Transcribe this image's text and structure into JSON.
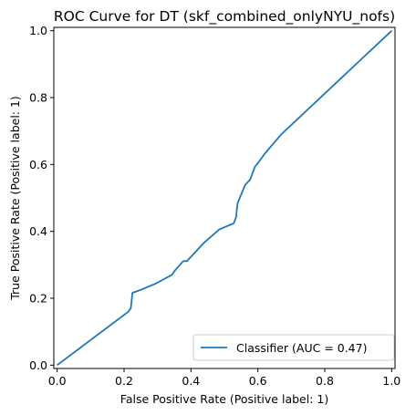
{
  "chart_data": {
    "type": "line",
    "title": "ROC Curve for DT (skf_combined_onlyNYU_nofs)",
    "xlabel": "False Positive Rate (Positive label: 1)",
    "ylabel": "True Positive Rate (Positive label: 1)",
    "xlim": [
      -0.01,
      1.01
    ],
    "ylim": [
      -0.01,
      1.01
    ],
    "xticks": [
      "0.0",
      "0.2",
      "0.4",
      "0.6",
      "0.8",
      "1.0"
    ],
    "yticks": [
      "0.0",
      "0.2",
      "0.4",
      "0.6",
      "0.8",
      "1.0"
    ],
    "grid": false,
    "legend_position": "lower-right",
    "series": [
      {
        "name": "Classifier (AUC = 0.47)",
        "color": "#1f77b4",
        "x": [
          0.0,
          0.213,
          0.22,
          0.222,
          0.225,
          0.252,
          0.295,
          0.343,
          0.352,
          0.377,
          0.388,
          0.44,
          0.485,
          0.528,
          0.535,
          0.538,
          0.54,
          0.562,
          0.577,
          0.591,
          0.603,
          0.622,
          0.645,
          0.671,
          1.0
        ],
        "y": [
          0.0,
          0.16,
          0.17,
          0.187,
          0.216,
          0.226,
          0.244,
          0.27,
          0.283,
          0.311,
          0.311,
          0.367,
          0.406,
          0.424,
          0.443,
          0.474,
          0.486,
          0.539,
          0.555,
          0.593,
          0.608,
          0.634,
          0.661,
          0.691,
          1.0
        ]
      }
    ]
  }
}
